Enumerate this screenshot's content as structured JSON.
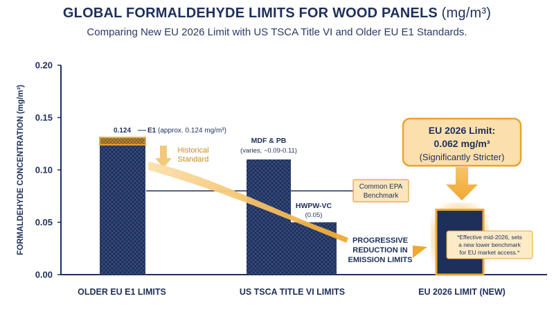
{
  "header": {
    "title": "GLOBAL FORMALDEHYDE LIMITS FOR WOOD PANELS",
    "title_unit": "(mg/m³)",
    "subtitle": "Comparing New EU 2026 Limit with US TSCA Title VI and Older EU E1 Standards."
  },
  "colors": {
    "navy": "#1e2f5a",
    "orange": "#f0a830",
    "orange_dark": "#d98a12",
    "note_bg": "#fdebc8"
  },
  "chart_data": {
    "type": "bar",
    "ylabel": "FORMALDEHYDE CONCENTRATION (mg/m³)",
    "ylim": [
      0,
      0.2
    ],
    "yticks": [
      "0.00",
      "0.05",
      "0.10",
      "0.15",
      "0.20"
    ],
    "categories": [
      "OLDER EU E1 LIMITS",
      "US TSCA TITLE VI LIMITS",
      "EU 2026 LIMIT (NEW)"
    ],
    "bars": [
      {
        "category": "OLDER EU E1 LIMITS",
        "value": 0.124,
        "cap_value": 0.131
      },
      {
        "category": "US TSCA TITLE VI LIMITS",
        "value": 0.11
      },
      {
        "category": "US TSCA TITLE VI LIMITS",
        "value": 0.05
      },
      {
        "category": "EU 2026 LIMIT (NEW)",
        "value": 0.062
      }
    ],
    "benchmark_value": 0.08,
    "annotations": {
      "e1_value": "0.124",
      "e1_name": "E1",
      "e1_note": "(approx. 0.124 mg/m³)",
      "historical": [
        "Historical",
        "Standard"
      ],
      "mdf_name": "MDF & PB",
      "mdf_note": "(varies, ~0.09-0.11)",
      "hwpw_name": "HWPW-VC",
      "hwpw_note": "(0.05)",
      "benchmark": [
        "Common EPA",
        "Benchmark"
      ],
      "progressive": [
        "PROGRESSIVE",
        "REDUCTION IN",
        "EMISSION LIMITS"
      ],
      "callout": [
        "EU 2026 Limit:",
        "0.062 mg/m³",
        "(Significantly Stricter)"
      ],
      "note": [
        "*Effective mid-2026, sets",
        "a new lower benchmark",
        "for EU market access.*"
      ]
    }
  }
}
